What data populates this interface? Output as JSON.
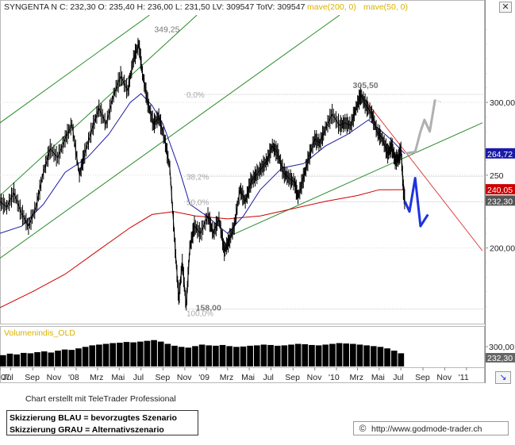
{
  "header": {
    "symbol": "SYNGENTA N",
    "ohlc": "C: 232,30  O: 235,40  H: 236,00  L: 231,50  LV: 309547  TotV: 309547",
    "ma_long_label": "mave(200, 0)",
    "ma_short_label": "mave(50, 0)"
  },
  "colors": {
    "price": "#000000",
    "ma_long": "#cc0000",
    "ma_short": "#1a1aa8",
    "channel": "#2a8a2a",
    "resistance": "#e04040",
    "scenario_blue": "#1f33e0",
    "scenario_grey": "#b0b0b0",
    "ma_label": "#d8b200",
    "volume_label": "#d8b200",
    "fib_label": "#aaaaaa"
  },
  "chart_data": {
    "type": "line",
    "title": "SYNGENTA N",
    "y_axis": {
      "ticks": [
        "300,00",
        "250",
        "200,00"
      ],
      "range": [
        148,
        360
      ]
    },
    "x_axis": {
      "range": [
        "2007-06-01",
        "2011-02-15"
      ],
      "ticks": [
        {
          "label": "07",
          "date": "2007-06-01"
        },
        {
          "label": "Jul",
          "date": "2007-07-01"
        },
        {
          "label": "Sep",
          "date": "2007-09-01"
        },
        {
          "label": "Nov",
          "date": "2007-11-01"
        },
        {
          "label": "'08",
          "date": "2008-01-01"
        },
        {
          "label": "Mrz",
          "date": "2008-03-01"
        },
        {
          "label": "Mai",
          "date": "2008-05-01"
        },
        {
          "label": "Jul",
          "date": "2008-07-01"
        },
        {
          "label": "Sep",
          "date": "2008-09-01"
        },
        {
          "label": "Nov",
          "date": "2008-11-01"
        },
        {
          "label": "'09",
          "date": "2009-01-01"
        },
        {
          "label": "Mrz",
          "date": "2009-03-01"
        },
        {
          "label": "Mai",
          "date": "2009-05-01"
        },
        {
          "label": "Jul",
          "date": "2009-07-01"
        },
        {
          "label": "Sep",
          "date": "2009-09-01"
        },
        {
          "label": "Nov",
          "date": "2009-11-01"
        },
        {
          "label": "'10",
          "date": "2010-01-01"
        },
        {
          "label": "Mrz",
          "date": "2010-03-01"
        },
        {
          "label": "Mai",
          "date": "2010-05-01"
        },
        {
          "label": "Jul",
          "date": "2010-07-01"
        },
        {
          "label": "Sep",
          "date": "2010-09-01"
        },
        {
          "label": "Nov",
          "date": "2010-11-01"
        },
        {
          "label": "'11",
          "date": "2011-01-01"
        }
      ]
    },
    "price_series": {
      "name": "SYNGENTA N",
      "points": [
        [
          "2007-06-01",
          232
        ],
        [
          "2007-06-20",
          228
        ],
        [
          "2007-07-10",
          238
        ],
        [
          "2007-07-31",
          224
        ],
        [
          "2007-08-20",
          215
        ],
        [
          "2007-09-10",
          228
        ],
        [
          "2007-10-01",
          252
        ],
        [
          "2007-10-20",
          268
        ],
        [
          "2007-11-10",
          262
        ],
        [
          "2007-12-01",
          275
        ],
        [
          "2007-12-20",
          285
        ],
        [
          "2008-01-10",
          250
        ],
        [
          "2008-01-25",
          265
        ],
        [
          "2008-02-15",
          282
        ],
        [
          "2008-03-05",
          296
        ],
        [
          "2008-03-25",
          285
        ],
        [
          "2008-04-15",
          305
        ],
        [
          "2008-05-05",
          318
        ],
        [
          "2008-05-25",
          308
        ],
        [
          "2008-06-10",
          330
        ],
        [
          "2008-06-25",
          340
        ],
        [
          "2008-07-05",
          320
        ],
        [
          "2008-07-20",
          300
        ],
        [
          "2008-08-05",
          285
        ],
        [
          "2008-08-20",
          290
        ],
        [
          "2008-09-05",
          275
        ],
        [
          "2008-09-20",
          255
        ],
        [
          "2008-10-05",
          200
        ],
        [
          "2008-10-15",
          165
        ],
        [
          "2008-10-25",
          190
        ],
        [
          "2008-11-05",
          160
        ],
        [
          "2008-11-15",
          200
        ],
        [
          "2008-11-28",
          215
        ],
        [
          "2008-12-15",
          210
        ],
        [
          "2009-01-05",
          222
        ],
        [
          "2009-01-20",
          210
        ],
        [
          "2009-02-05",
          220
        ],
        [
          "2009-02-20",
          198
        ],
        [
          "2009-03-05",
          205
        ],
        [
          "2009-03-20",
          215
        ],
        [
          "2009-04-05",
          240
        ],
        [
          "2009-04-20",
          232
        ],
        [
          "2009-05-05",
          245
        ],
        [
          "2009-05-20",
          250
        ],
        [
          "2009-06-05",
          255
        ],
        [
          "2009-06-20",
          260
        ],
        [
          "2009-07-05",
          270
        ],
        [
          "2009-07-20",
          265
        ],
        [
          "2009-08-05",
          252
        ],
        [
          "2009-08-20",
          248
        ],
        [
          "2009-09-05",
          245
        ],
        [
          "2009-09-15",
          235
        ],
        [
          "2009-09-30",
          248
        ],
        [
          "2009-10-15",
          262
        ],
        [
          "2009-11-01",
          275
        ],
        [
          "2009-11-15",
          272
        ],
        [
          "2009-12-01",
          282
        ],
        [
          "2009-12-20",
          292
        ],
        [
          "2010-01-10",
          284
        ],
        [
          "2010-01-25",
          286
        ],
        [
          "2010-02-10",
          284
        ],
        [
          "2010-02-25",
          296
        ],
        [
          "2010-03-10",
          305
        ],
        [
          "2010-03-25",
          298
        ],
        [
          "2010-04-10",
          292
        ],
        [
          "2010-04-25",
          280
        ],
        [
          "2010-05-10",
          275
        ],
        [
          "2010-05-25",
          265
        ],
        [
          "2010-06-05",
          270
        ],
        [
          "2010-06-15",
          260
        ],
        [
          "2010-06-25",
          262
        ],
        [
          "2010-07-01",
          268
        ],
        [
          "2010-07-08",
          240
        ],
        [
          "2010-07-12",
          232.3
        ]
      ]
    },
    "ma_200": {
      "name": "mave(200, 0)",
      "points": [
        [
          "2007-06-01",
          159
        ],
        [
          "2007-09-01",
          170
        ],
        [
          "2007-12-01",
          182
        ],
        [
          "2008-03-01",
          198
        ],
        [
          "2008-06-01",
          214
        ],
        [
          "2008-08-01",
          223
        ],
        [
          "2008-10-01",
          225
        ],
        [
          "2008-12-01",
          222
        ],
        [
          "2009-03-01",
          220
        ],
        [
          "2009-06-01",
          222
        ],
        [
          "2009-09-01",
          227
        ],
        [
          "2009-12-01",
          232
        ],
        [
          "2010-03-01",
          236
        ],
        [
          "2010-05-01",
          240
        ],
        [
          "2010-07-12",
          240.05
        ]
      ]
    },
    "ma_50": {
      "name": "mave(50, 0)",
      "points": [
        [
          "2007-06-01",
          210
        ],
        [
          "2007-08-01",
          215
        ],
        [
          "2007-10-01",
          230
        ],
        [
          "2007-12-01",
          252
        ],
        [
          "2008-02-01",
          262
        ],
        [
          "2008-04-01",
          278
        ],
        [
          "2008-06-01",
          300
        ],
        [
          "2008-07-01",
          306
        ],
        [
          "2008-08-01",
          298
        ],
        [
          "2008-09-01",
          285
        ],
        [
          "2008-10-15",
          255
        ],
        [
          "2008-11-15",
          230
        ],
        [
          "2009-01-01",
          222
        ],
        [
          "2009-03-01",
          210
        ],
        [
          "2009-04-15",
          222
        ],
        [
          "2009-06-01",
          240
        ],
        [
          "2009-08-01",
          255
        ],
        [
          "2009-10-01",
          258
        ],
        [
          "2009-12-01",
          270
        ],
        [
          "2010-02-01",
          278
        ],
        [
          "2010-04-01",
          288
        ],
        [
          "2010-06-01",
          275
        ],
        [
          "2010-07-12",
          264.72
        ]
      ]
    },
    "annotations": {
      "high_2008": {
        "label": "349,25",
        "date": "2008-06-28",
        "value": 349.25
      },
      "low_2008": {
        "label": "158,00",
        "date": "2008-11-05",
        "value": 158.0
      },
      "high_2010": {
        "label": "305,50",
        "date": "2010-03-10",
        "value": 305.5
      },
      "fib_0": {
        "label": "0,0%",
        "value": 305.5
      },
      "fib_382": {
        "label": "38,2%",
        "value": 249.2
      },
      "fib_50": {
        "label": "50,0%",
        "value": 231.75
      },
      "fib_100": {
        "label": "100,0%",
        "value": 158.0
      }
    },
    "value_labels": {
      "ma_short_last": "264,72",
      "ma_long_last": "240,05",
      "close_last": "232,30"
    },
    "trend_lines": {
      "channel_upper": [
        [
          "2007-06-01",
          286
        ],
        [
          "2008-07-25",
          360
        ]
      ],
      "channel_mid": [
        [
          "2007-06-01",
          236
        ],
        [
          "2008-12-05",
          360
        ]
      ],
      "channel_lower": [
        [
          "2007-06-01",
          193
        ],
        [
          "2010-01-10",
          360
        ]
      ],
      "support": [
        [
          "2009-03-05",
          208
        ],
        [
          "2011-02-15",
          286
        ]
      ],
      "resistance": [
        [
          "2010-03-10",
          305.5
        ],
        [
          "2011-02-15",
          198
        ]
      ]
    },
    "scenario_blue": [
      [
        "2010-07-12",
        232
      ],
      [
        "2010-07-25",
        225
      ],
      [
        "2010-08-10",
        248
      ],
      [
        "2010-08-25",
        215
      ],
      [
        "2010-09-15",
        223
      ]
    ],
    "scenario_grey": [
      [
        "2010-07-15",
        265
      ],
      [
        "2010-08-10",
        266
      ],
      [
        "2010-08-25",
        280
      ],
      [
        "2010-09-05",
        288
      ],
      [
        "2010-09-20",
        280
      ],
      [
        "2010-10-05",
        302
      ],
      [
        "2010-10-20",
        297
      ]
    ]
  },
  "volume": {
    "label": "Volumenindis_OLD",
    "axis_value": "300,00",
    "value_badge": "232,30",
    "values": [
      30,
      34,
      32,
      36,
      35,
      38,
      40,
      37,
      42,
      45,
      44,
      48,
      52,
      56,
      58,
      60,
      62,
      63,
      65,
      64,
      66,
      68,
      70,
      66,
      60,
      55,
      52,
      50,
      54,
      58,
      56,
      55,
      57,
      54,
      52,
      53,
      55,
      56,
      58,
      57,
      55,
      56,
      58,
      60,
      59,
      57,
      56,
      58,
      60,
      62,
      61,
      60,
      58,
      56,
      54,
      52,
      48,
      42,
      35
    ]
  },
  "footer": {
    "credit": "Chart erstellt mit TeleTrader Professional",
    "legend_blue": "Skizzierung BLAU = bevorzugtes Szenario",
    "legend_grey": "Skizzierung GRAU = Alternativszenario",
    "url": "http://www.godmode-trader.ch"
  },
  "icons": {
    "close": "close-icon",
    "arrow": "arrow-icon",
    "copyright": "copyright-icon"
  }
}
